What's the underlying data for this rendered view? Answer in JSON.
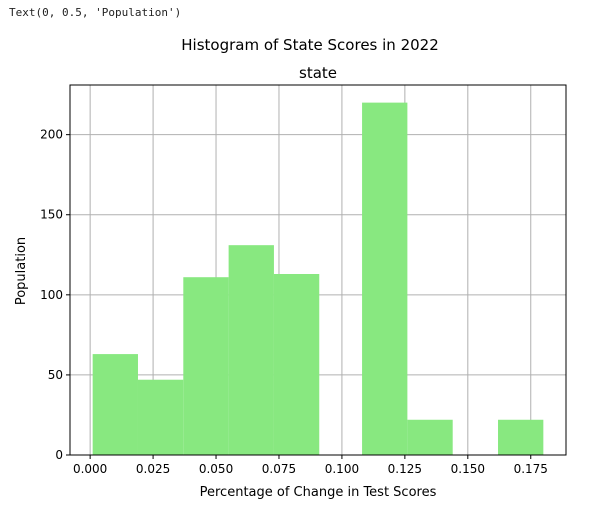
{
  "output_text": "Text(0, 0.5, 'Population')",
  "colors": {
    "bar": "#88e880",
    "grid": "#b0b0b0",
    "axis": "#000000"
  },
  "chart_data": {
    "type": "bar",
    "title": "state",
    "suptitle": "Histogram of State Scores in 2022",
    "xlabel": "Percentage of Change in Test Scores",
    "ylabel": "Population",
    "grid": true,
    "xlim": [
      -0.008,
      0.189
    ],
    "ylim": [
      0,
      231
    ],
    "xticks": [
      {
        "value": 0.0,
        "label": "0.000"
      },
      {
        "value": 0.025,
        "label": "0.025"
      },
      {
        "value": 0.05,
        "label": "0.050"
      },
      {
        "value": 0.075,
        "label": "0.075"
      },
      {
        "value": 0.1,
        "label": "0.100"
      },
      {
        "value": 0.125,
        "label": "0.125"
      },
      {
        "value": 0.15,
        "label": "0.150"
      },
      {
        "value": 0.175,
        "label": "0.175"
      }
    ],
    "yticks": [
      {
        "value": 0,
        "label": "0"
      },
      {
        "value": 50,
        "label": "50"
      },
      {
        "value": 100,
        "label": "100"
      },
      {
        "value": 150,
        "label": "150"
      },
      {
        "value": 200,
        "label": "200"
      }
    ],
    "bins": [
      {
        "x0": 0.001,
        "x1": 0.019,
        "count": 63
      },
      {
        "x0": 0.019,
        "x1": 0.037,
        "count": 47
      },
      {
        "x0": 0.037,
        "x1": 0.055,
        "count": 111
      },
      {
        "x0": 0.055,
        "x1": 0.073,
        "count": 131
      },
      {
        "x0": 0.073,
        "x1": 0.091,
        "count": 113
      },
      {
        "x0": 0.091,
        "x1": 0.108,
        "count": 0
      },
      {
        "x0": 0.108,
        "x1": 0.126,
        "count": 220
      },
      {
        "x0": 0.126,
        "x1": 0.144,
        "count": 22
      },
      {
        "x0": 0.144,
        "x1": 0.162,
        "count": 0
      },
      {
        "x0": 0.162,
        "x1": 0.18,
        "count": 22
      }
    ]
  }
}
